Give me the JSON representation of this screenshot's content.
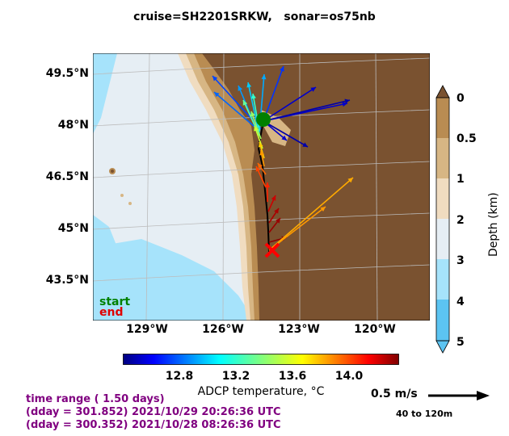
{
  "title": "cruise=SH2201SRKW,   sonar=os75nb",
  "map": {
    "lat_labels": [
      "49.5°N",
      "48°N",
      "46.5°N",
      "45°N",
      "43.5°N"
    ],
    "lon_labels": [
      "129°W",
      "126°W",
      "123°W",
      "120°W"
    ],
    "start_label": "start",
    "end_label": "end",
    "start_color": "#008000",
    "end_color": "#ff0000"
  },
  "depth_colorbar": {
    "label": "Depth (km)",
    "ticks": [
      "0",
      "0.5",
      "1",
      "2",
      "3",
      "4",
      "5"
    ],
    "colors": [
      "#7a5230",
      "#b98c52",
      "#d7b684",
      "#f0dcc0",
      "#e6eef4",
      "#a6e3fb",
      "#5cc4f2"
    ]
  },
  "temp_colorbar": {
    "label": "ADCP temperature, °C",
    "ticks": [
      "12.8",
      "13.2",
      "13.6",
      "14.0"
    ],
    "colormap": "jet"
  },
  "info": {
    "line1": "time range ( 1.50 days)",
    "line2": "(dday = 301.852) 2021/10/29 20:26:36 UTC",
    "line3": "(dday = 300.352) 2021/10/28 08:26:36 UTC"
  },
  "scale": {
    "label": "0.5 m/s",
    "depth_range": "40 to 120m"
  }
}
